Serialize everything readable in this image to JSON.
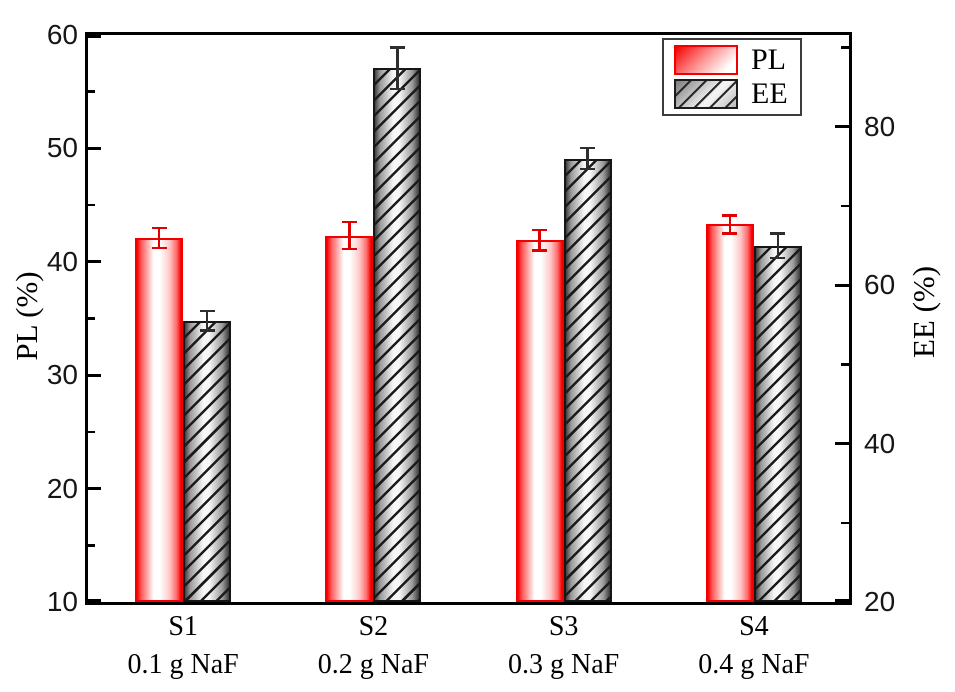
{
  "chart_data": {
    "type": "bar",
    "title": "",
    "categories": [
      {
        "line1": "S1",
        "line2": "0.1 g NaF"
      },
      {
        "line1": "S2",
        "line2": "0.2 g NaF"
      },
      {
        "line1": "S3",
        "line2": "0.3 g NaF"
      },
      {
        "line1": "S4",
        "line2": "0.4 g NaF"
      }
    ],
    "series": [
      {
        "name": "PL",
        "axis": "left",
        "values": [
          42.1,
          42.3,
          41.9,
          43.3
        ],
        "errors": [
          1.0,
          1.3,
          1.0,
          0.9
        ],
        "edge_color": "#f20000",
        "error_color": "#e00000",
        "fill": "red-white cylinder gradient"
      },
      {
        "name": "EE",
        "axis": "right",
        "values": [
          55.5,
          87.4,
          76.0,
          65.0
        ],
        "errors": [
          1.4,
          2.8,
          1.5,
          1.7
        ],
        "edge_color": "#161616",
        "error_color": "#2e2e2e",
        "fill": "gray cylinder gradient with diagonal hatch"
      }
    ],
    "axes": {
      "left": {
        "label": "PL (%)",
        "min": 10,
        "max": 60,
        "major_ticks": [
          10,
          20,
          30,
          40,
          50,
          60
        ],
        "minor_ticks": [
          15,
          25,
          35,
          45,
          55
        ]
      },
      "right": {
        "label": "EE (%)",
        "min": 20,
        "max": 91.6,
        "major_ticks": [
          20,
          40,
          60,
          80
        ],
        "minor_ticks": [
          30,
          50,
          70,
          90
        ]
      }
    },
    "legend": {
      "entries": [
        "PL",
        "EE"
      ],
      "position": "top-right"
    },
    "grid": false,
    "frame_color": "#000000",
    "background": "#ffffff"
  }
}
